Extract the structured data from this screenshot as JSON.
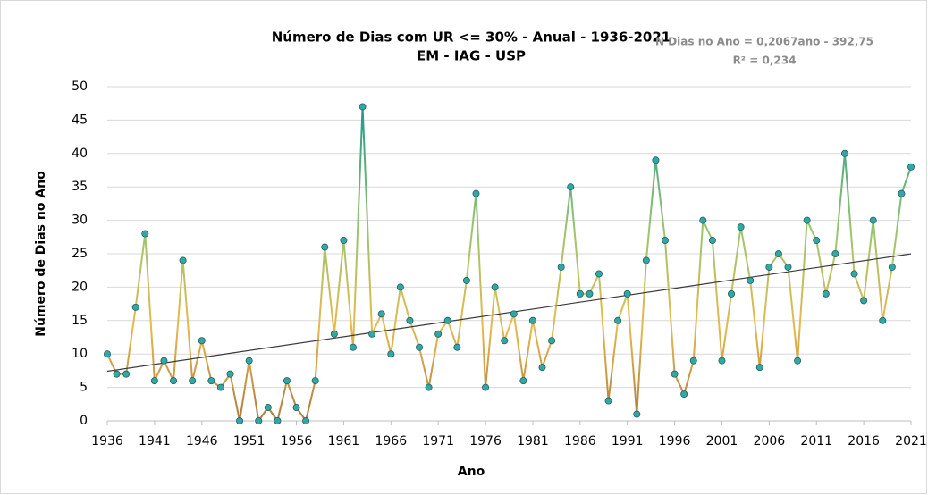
{
  "chart_data": {
    "type": "line",
    "title": "Número de Dias com UR <= 30% - Anual - 1936-2021",
    "subtitle": "EM - IAG - USP",
    "annotations": [
      "N Dias no Ano = 0,2067ano - 392,75",
      "R² = 0,234"
    ],
    "trendline": {
      "slope": 0.2067,
      "intercept": -392.75,
      "color": "#3a3a3a"
    },
    "x_label": "Ano",
    "y_label": "Número de Dias no Ano",
    "x": [
      1936,
      1937,
      1938,
      1939,
      1940,
      1941,
      1942,
      1943,
      1944,
      1945,
      1946,
      1947,
      1948,
      1949,
      1950,
      1951,
      1952,
      1953,
      1954,
      1955,
      1956,
      1957,
      1958,
      1959,
      1960,
      1961,
      1962,
      1963,
      1964,
      1965,
      1966,
      1967,
      1968,
      1969,
      1970,
      1971,
      1972,
      1973,
      1974,
      1975,
      1976,
      1977,
      1978,
      1979,
      1980,
      1981,
      1982,
      1983,
      1984,
      1985,
      1986,
      1987,
      1988,
      1989,
      1990,
      1991,
      1992,
      1993,
      1994,
      1995,
      1996,
      1997,
      1998,
      1999,
      2000,
      2001,
      2002,
      2003,
      2004,
      2005,
      2006,
      2007,
      2008,
      2009,
      2010,
      2011,
      2012,
      2013,
      2014,
      2015,
      2016,
      2017,
      2018,
      2019,
      2020,
      2021
    ],
    "values": [
      10,
      7,
      7,
      17,
      28,
      6,
      9,
      6,
      24,
      6,
      12,
      6,
      5,
      7,
      0,
      9,
      0,
      2,
      0,
      6,
      2,
      0,
      6,
      26,
      13,
      27,
      11,
      47,
      13,
      16,
      10,
      20,
      15,
      11,
      5,
      13,
      15,
      11,
      21,
      34,
      5,
      20,
      12,
      16,
      6,
      15,
      8,
      12,
      23,
      35,
      19,
      19,
      22,
      3,
      15,
      19,
      1,
      24,
      39,
      27,
      7,
      4,
      9,
      30,
      27,
      9,
      19,
      29,
      21,
      8,
      23,
      25,
      23,
      9,
      30,
      27,
      19,
      25,
      40,
      22,
      18,
      30,
      15,
      23,
      34,
      38
    ],
    "line_colors": [
      "#b07a3c",
      "#e6b94e",
      "#9cc46e",
      "#1f9a8a"
    ],
    "marker_color": "#33a6a6",
    "xlim": [
      1936,
      2021
    ],
    "xticks": [
      1936,
      1941,
      1946,
      1951,
      1956,
      1961,
      1966,
      1971,
      1976,
      1981,
      1986,
      1991,
      1996,
      2001,
      2006,
      2011,
      2016,
      2021
    ],
    "ylim": [
      0,
      50
    ],
    "yticks": [
      0,
      5,
      10,
      15,
      20,
      25,
      30,
      35,
      40,
      45,
      50
    ],
    "grid": true
  }
}
